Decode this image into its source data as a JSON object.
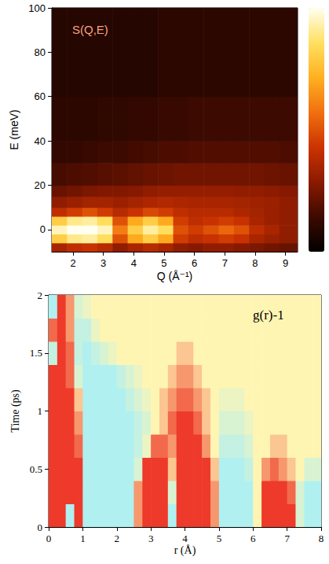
{
  "chart_data": [
    {
      "type": "heatmap",
      "title": "S(Q,E)",
      "xlabel": "Q (Å⁻¹)",
      "ylabel": "E (meV)",
      "xlim": [
        1.3,
        9.4
      ],
      "ylim": [
        -10,
        100
      ],
      "xticks": [
        2,
        3,
        4,
        5,
        6,
        7,
        8,
        9
      ],
      "yticks": [
        0,
        20,
        40,
        60,
        80,
        100
      ],
      "x_edges": [
        1.3,
        1.8,
        2.3,
        2.8,
        3.3,
        3.8,
        4.3,
        4.8,
        5.3,
        5.8,
        6.3,
        6.8,
        7.3,
        7.8,
        8.3,
        8.8,
        9.4
      ],
      "y_edges": [
        -10,
        -6,
        -2,
        2,
        6,
        10,
        15,
        20,
        30,
        40,
        60,
        100
      ],
      "z": [
        [
          0.35,
          0.4,
          0.42,
          0.38,
          0.3,
          0.35,
          0.38,
          0.35,
          0.3,
          0.28,
          0.3,
          0.3,
          0.28,
          0.26,
          0.24,
          0.22
        ],
        [
          0.8,
          0.9,
          0.92,
          0.85,
          0.5,
          0.7,
          0.8,
          0.7,
          0.45,
          0.4,
          0.42,
          0.45,
          0.42,
          0.35,
          0.32,
          0.3
        ],
        [
          0.95,
          1,
          1,
          0.95,
          0.6,
          0.8,
          0.92,
          0.85,
          0.5,
          0.45,
          0.5,
          0.55,
          0.5,
          0.4,
          0.35,
          0.3
        ],
        [
          0.8,
          0.9,
          0.92,
          0.85,
          0.5,
          0.7,
          0.8,
          0.7,
          0.45,
          0.4,
          0.42,
          0.45,
          0.42,
          0.35,
          0.32,
          0.3
        ],
        [
          0.4,
          0.45,
          0.5,
          0.45,
          0.38,
          0.42,
          0.48,
          0.45,
          0.4,
          0.38,
          0.38,
          0.38,
          0.36,
          0.34,
          0.32,
          0.3
        ],
        [
          0.3,
          0.32,
          0.34,
          0.34,
          0.32,
          0.34,
          0.36,
          0.37,
          0.36,
          0.35,
          0.35,
          0.35,
          0.34,
          0.33,
          0.32,
          0.3
        ],
        [
          0.22,
          0.24,
          0.26,
          0.27,
          0.27,
          0.28,
          0.3,
          0.31,
          0.31,
          0.31,
          0.31,
          0.31,
          0.3,
          0.3,
          0.29,
          0.28
        ],
        [
          0.16,
          0.17,
          0.18,
          0.19,
          0.2,
          0.21,
          0.22,
          0.23,
          0.24,
          0.24,
          0.24,
          0.24,
          0.24,
          0.24,
          0.23,
          0.22
        ],
        [
          0.12,
          0.12,
          0.13,
          0.14,
          0.14,
          0.15,
          0.16,
          0.17,
          0.17,
          0.18,
          0.18,
          0.18,
          0.18,
          0.18,
          0.18,
          0.17
        ],
        [
          0.1,
          0.1,
          0.1,
          0.11,
          0.11,
          0.12,
          0.12,
          0.13,
          0.13,
          0.14,
          0.14,
          0.14,
          0.14,
          0.14,
          0.14,
          0.14
        ],
        [
          0.09,
          0.09,
          0.09,
          0.09,
          0.09,
          0.09,
          0.09,
          0.1,
          0.1,
          0.1,
          0.1,
          0.1,
          0.1,
          0.1,
          0.1,
          0.1
        ]
      ],
      "colorbar_range": [
        0,
        1
      ]
    },
    {
      "type": "heatmap",
      "title": "g(r)-1",
      "xlabel": "r (Å)",
      "ylabel": "Time (ps)",
      "xlim": [
        0,
        8
      ],
      "ylim": [
        0,
        2
      ],
      "xticks": [
        0,
        1,
        2,
        3,
        4,
        5,
        6,
        7,
        8
      ],
      "yticks": [
        0,
        0.5,
        1,
        1.5,
        2
      ],
      "x_edges": [
        0,
        0.25,
        0.5,
        0.75,
        1,
        1.25,
        1.5,
        1.75,
        2,
        2.25,
        2.5,
        2.75,
        3,
        3.25,
        3.5,
        3.75,
        4,
        4.25,
        4.5,
        4.75,
        5,
        5.25,
        5.5,
        5.75,
        6,
        6.25,
        6.5,
        6.75,
        7,
        7.25,
        7.5,
        7.75,
        8
      ],
      "y_edges": [
        0,
        0.2,
        0.4,
        0.6,
        0.8,
        1,
        1.2,
        1.4,
        1.6,
        1.8,
        2
      ],
      "z": [
        [
          0.2,
          0.2,
          -0.2,
          0.2,
          -0.2,
          -0.2,
          -0.2,
          -0.2,
          -0.2,
          -0.2,
          0.1,
          0.2,
          0.2,
          0.2,
          -0.2,
          0.2,
          0.2,
          0.2,
          0.2,
          0.1,
          -0.2,
          -0.2,
          -0.2,
          -0.2,
          0,
          0.2,
          0.2,
          0.2,
          0.2,
          -0.1,
          -0.2,
          -0.2
        ],
        [
          0.2,
          0.2,
          0.2,
          0.2,
          -0.2,
          -0.2,
          -0.2,
          -0.2,
          -0.2,
          -0.2,
          0.1,
          0.2,
          0.2,
          0.2,
          -0.1,
          0.2,
          0.2,
          0.2,
          0.2,
          0.1,
          -0.2,
          -0.2,
          -0.2,
          -0.2,
          0,
          0.2,
          0.2,
          0.2,
          0.15,
          -0.1,
          -0.2,
          -0.2
        ],
        [
          0.2,
          0.2,
          0.2,
          0.2,
          -0.2,
          -0.2,
          -0.2,
          -0.2,
          -0.2,
          -0.2,
          -0.1,
          0.2,
          0.2,
          0.2,
          0.05,
          0.2,
          0.2,
          0.2,
          0.2,
          0.05,
          -0.2,
          -0.2,
          -0.2,
          -0.15,
          0,
          0.1,
          0.15,
          0.1,
          0.05,
          0,
          -0.1,
          -0.1
        ],
        [
          0.2,
          0.2,
          0.2,
          0.15,
          -0.2,
          -0.2,
          -0.2,
          -0.2,
          -0.2,
          -0.2,
          -0.15,
          -0.05,
          0.15,
          0.15,
          0.1,
          0.2,
          0.2,
          0.2,
          0.1,
          0,
          -0.15,
          -0.15,
          -0.15,
          -0.1,
          0,
          0,
          0.05,
          0.05,
          0,
          0,
          0,
          0
        ],
        [
          0.2,
          0.2,
          0.2,
          0.1,
          -0.2,
          -0.2,
          -0.2,
          -0.2,
          -0.2,
          -0.2,
          -0.15,
          -0.1,
          0,
          0.05,
          0.15,
          0.2,
          0.2,
          0.15,
          0.05,
          0,
          -0.1,
          -0.1,
          -0.1,
          -0.05,
          0,
          0,
          0,
          0,
          0,
          0,
          0,
          0
        ],
        [
          0.2,
          0.2,
          0.2,
          0.05,
          -0.2,
          -0.2,
          -0.2,
          -0.2,
          -0.2,
          -0.15,
          -0.1,
          -0.05,
          0,
          0.05,
          0.1,
          0.15,
          0.15,
          0.1,
          0.05,
          0,
          -0.05,
          -0.05,
          -0.05,
          0,
          0,
          0,
          0,
          0,
          0,
          0,
          0,
          0
        ],
        [
          0.2,
          0.2,
          0.15,
          -0.1,
          -0.2,
          -0.2,
          -0.2,
          -0.2,
          -0.15,
          -0.1,
          -0.05,
          0,
          0,
          0,
          0.05,
          0.1,
          0.1,
          0.05,
          0,
          0,
          0,
          0,
          0,
          0,
          0,
          0,
          0,
          0,
          0,
          0,
          0,
          0
        ],
        [
          -0.15,
          0.2,
          0.15,
          -0.15,
          -0.2,
          -0.15,
          -0.1,
          -0.05,
          0,
          0,
          0,
          0,
          0,
          0,
          0,
          0.05,
          0.05,
          0,
          0,
          0,
          0,
          0,
          0,
          0,
          0,
          0,
          0,
          0,
          0,
          0,
          0,
          0
        ],
        [
          0.15,
          0.2,
          0.1,
          -0.15,
          -0.15,
          -0.05,
          0,
          0,
          0,
          0,
          0,
          0,
          0,
          0,
          0,
          0,
          0,
          0,
          0,
          0,
          0,
          0,
          0,
          0,
          0,
          0,
          0,
          0,
          0,
          0,
          0,
          0
        ],
        [
          -0.2,
          0.2,
          0.1,
          -0.1,
          -0.05,
          0,
          0,
          0,
          0,
          0,
          0,
          0,
          0,
          0,
          0,
          0,
          0,
          0,
          0,
          0,
          0,
          0,
          0,
          0,
          0,
          0,
          0,
          0,
          0,
          0,
          0,
          0
        ]
      ],
      "zlim": [
        -0.2,
        0.2
      ]
    }
  ]
}
